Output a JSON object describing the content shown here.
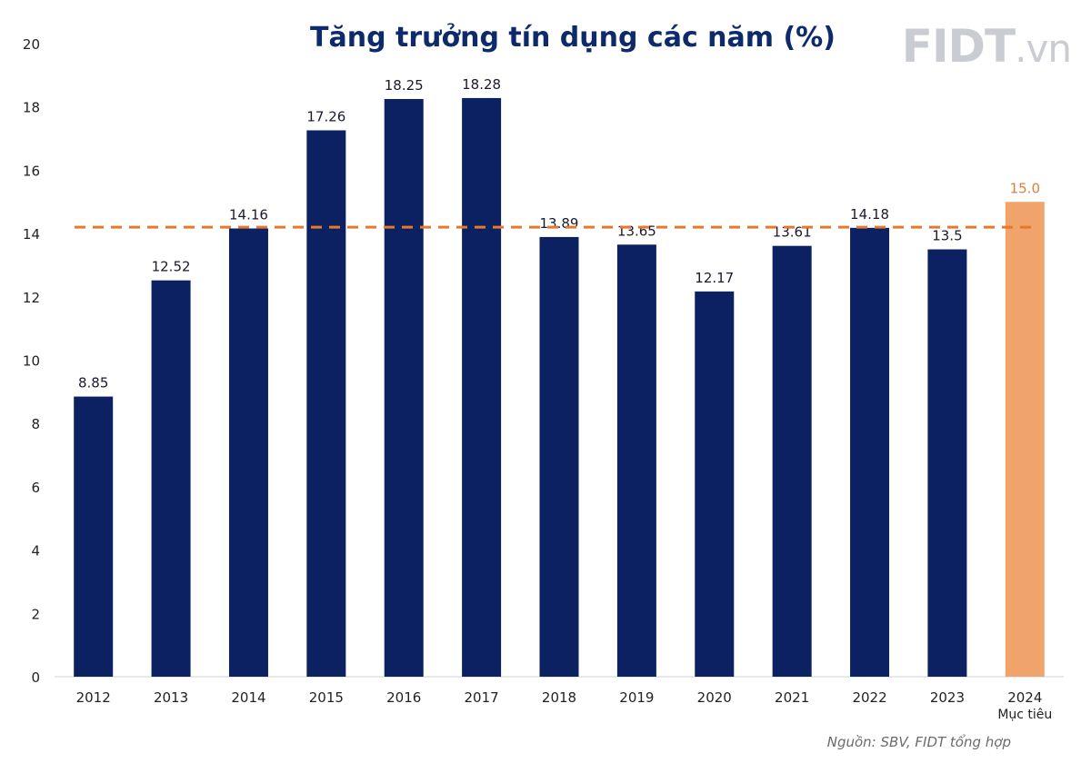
{
  "title": "Tăng trưởng tín dụng các năm (%)",
  "logo": {
    "main": "FIDT",
    "suffix": ".vn"
  },
  "source": "Nguồn: SBV, FIDT tổng hợp",
  "colors": {
    "bar": "#0b2161",
    "target": "#f0a46c",
    "target_label": "#e07b3c",
    "refline": "#e8782d",
    "axis_text": "#222222"
  },
  "chart_data": {
    "type": "bar",
    "categories": [
      "2012",
      "2013",
      "2014",
      "2015",
      "2016",
      "2017",
      "2018",
      "2019",
      "2020",
      "2021",
      "2022",
      "2023",
      "2024"
    ],
    "category_sublabels": [
      "",
      "",
      "",
      "",
      "",
      "",
      "",
      "",
      "",
      "",
      "",
      "",
      "Mục tiêu"
    ],
    "values": [
      8.85,
      12.52,
      14.16,
      17.26,
      18.25,
      18.28,
      13.89,
      13.65,
      12.17,
      13.61,
      14.18,
      13.5,
      15.0
    ],
    "value_labels": [
      "8.85",
      "12.52",
      "14.16",
      "17.26",
      "18.25",
      "18.28",
      "13.89",
      "13.65",
      "12.17",
      "13.61",
      "14.18",
      "13.5",
      "15.0"
    ],
    "highlight_index": 12,
    "ylim": [
      0,
      20
    ],
    "yticks": [
      "0",
      "2",
      "4",
      "6",
      "8",
      "10",
      "12",
      "14",
      "16",
      "18",
      "20"
    ],
    "reference_line": {
      "value": 14.2,
      "style": "dashed"
    },
    "grid": false,
    "legend": "none"
  }
}
